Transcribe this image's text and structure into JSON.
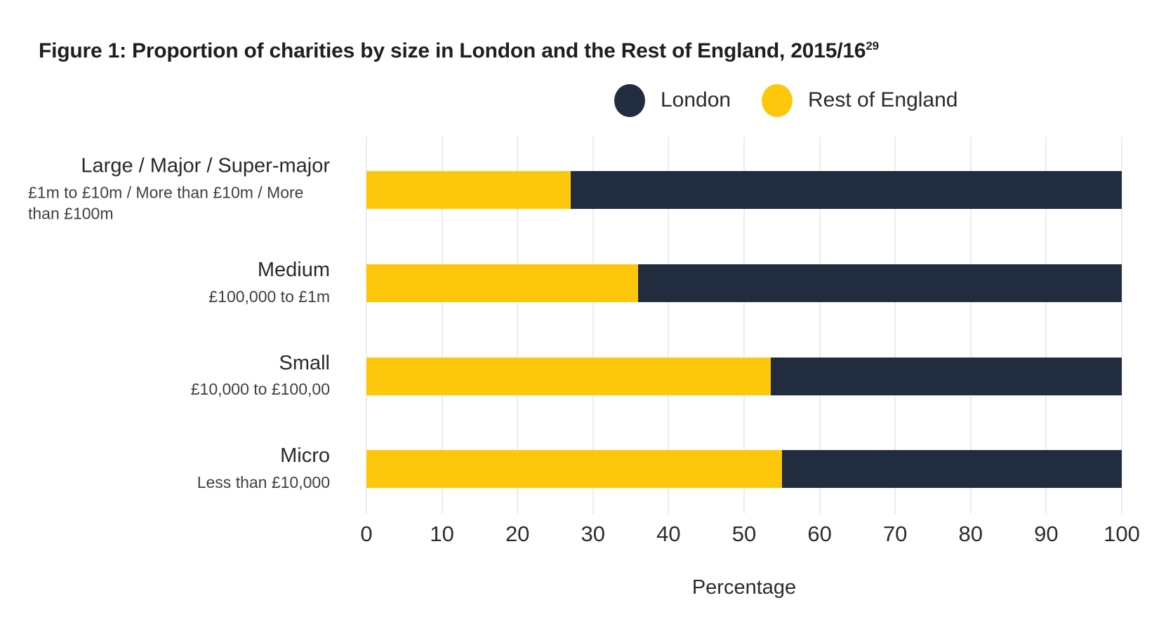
{
  "figure": {
    "title": "Figure 1: Proportion of charities by size in London and the Rest of England, 2015/16",
    "title_superscript": "29"
  },
  "chart_data": {
    "type": "bar",
    "orientation": "horizontal",
    "stacked": true,
    "title": "Figure 1: Proportion of charities by size in London and the Rest of England, 2015/16",
    "footnote_marker": "29",
    "categories": [
      {
        "name": "Large / Major / Super-major",
        "sublabel": "£1m to £10m / More than £10m / More than £100m"
      },
      {
        "name": "Medium",
        "sublabel": "£100,000 to £1m"
      },
      {
        "name": "Small",
        "sublabel": "£10,000 to £100,00"
      },
      {
        "name": "Micro",
        "sublabel": "Less than £10,000"
      }
    ],
    "series": [
      {
        "name": "Rest of England",
        "color": "#fdc70c",
        "values": [
          27,
          36,
          53.5,
          55
        ]
      },
      {
        "name": "London",
        "color": "#212d3e",
        "values": [
          73,
          64,
          46.5,
          45
        ]
      }
    ],
    "legend": [
      {
        "label": "London",
        "color": "#212d3e"
      },
      {
        "label": "Rest of England",
        "color": "#fdc70c"
      }
    ],
    "legend_position": "top-right",
    "xlabel": "Percentage",
    "xlim": [
      0,
      100
    ],
    "xticks": [
      0,
      10,
      20,
      30,
      40,
      50,
      60,
      70,
      80,
      90,
      100
    ],
    "grid": true,
    "gridline_color": "#ececee",
    "background_color": "#ffffff",
    "text_color": "#232226"
  }
}
